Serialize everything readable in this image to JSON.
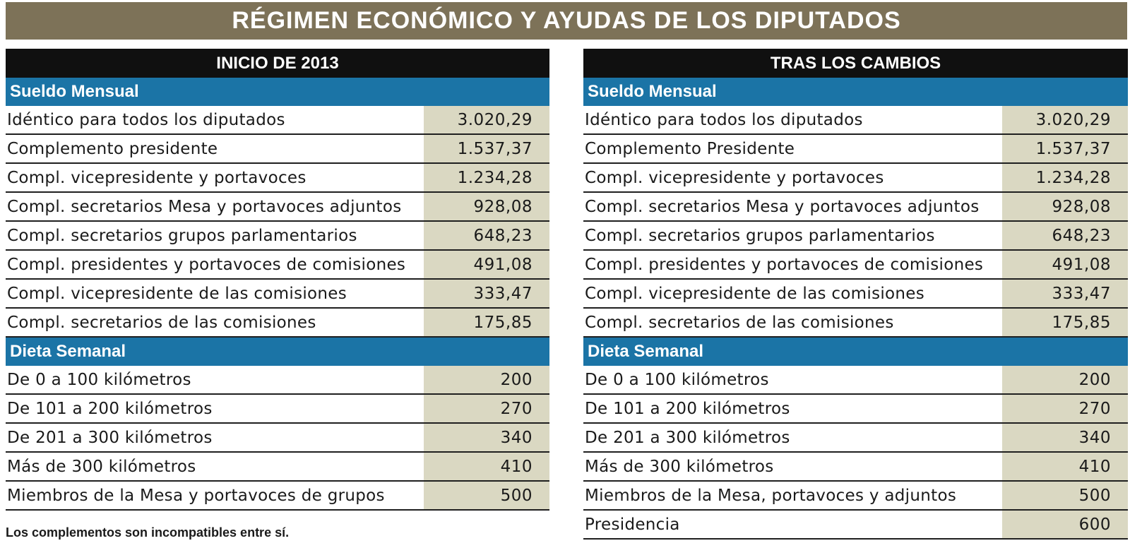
{
  "title": "RÉGIMEN ECONÓMICO Y AYUDAS DE LOS DIPUTADOS",
  "left": {
    "heading": "INICIO DE 2013",
    "sueldo": {
      "heading": "Sueldo Mensual",
      "rows": [
        {
          "label": "Idéntico para todos los diputados",
          "value": "3.020,29"
        },
        {
          "label": "Complemento presidente",
          "value": "1.537,37"
        },
        {
          "label": "Compl. vicepresidente y portavoces",
          "value": "1.234,28"
        },
        {
          "label": "Compl. secretarios Mesa y portavoces adjuntos",
          "value": "928,08"
        },
        {
          "label": "Compl. secretarios grupos parlamentarios",
          "value": "648,23"
        },
        {
          "label": "Compl. presidentes y portavoces de comisiones",
          "value": "491,08"
        },
        {
          "label": "Compl. vicepresidente de las comisiones",
          "value": "333,47"
        },
        {
          "label": "Compl. secretarios de las comisiones",
          "value": "175,85"
        }
      ]
    },
    "dieta": {
      "heading": "Dieta Semanal",
      "rows": [
        {
          "label": "De 0 a 100 kilómetros",
          "value": "200"
        },
        {
          "label": "De 101 a 200 kilómetros",
          "value": "270"
        },
        {
          "label": "De 201 a 300 kilómetros",
          "value": "340"
        },
        {
          "label": "Más de 300 kilómetros",
          "value": "410"
        },
        {
          "label": "Miembros de la Mesa y portavoces de grupos",
          "value": "500"
        }
      ]
    }
  },
  "right": {
    "heading": "TRAS LOS CAMBIOS",
    "sueldo": {
      "heading": "Sueldo Mensual",
      "rows": [
        {
          "label": "Idéntico para todos los diputados",
          "value": "3.020,29"
        },
        {
          "label": "Complemento Presidente",
          "value": "1.537,37"
        },
        {
          "label": "Compl. vicepresidente y portavoces",
          "value": "1.234,28"
        },
        {
          "label": "Compl. secretarios Mesa y portavoces adjuntos",
          "value": "928,08"
        },
        {
          "label": "Compl. secretarios grupos parlamentarios",
          "value": "648,23"
        },
        {
          "label": "Compl. presidentes y portavoces de comisiones",
          "value": "491,08"
        },
        {
          "label": "Compl. vicepresidente de las comisiones",
          "value": "333,47"
        },
        {
          "label": "Compl. secretarios de las comisiones",
          "value": "175,85"
        }
      ]
    },
    "dieta": {
      "heading": "Dieta Semanal",
      "rows": [
        {
          "label": "De 0 a 100 kilómetros",
          "value": "200"
        },
        {
          "label": "De 101 a 200 kilómetros",
          "value": "270"
        },
        {
          "label": "De 201 a 300 kilómetros",
          "value": "340"
        },
        {
          "label": "Más de 300 kilómetros",
          "value": "410"
        },
        {
          "label": "Miembros de la Mesa, portavoces y adjuntos",
          "value": "500"
        },
        {
          "label": "Presidencia",
          "value": "600"
        }
      ]
    }
  },
  "footnote": "Los complementos son incompatibles entre sí.",
  "colors": {
    "title_bg": "#7d7258",
    "panel_head_bg": "#101010",
    "section_head_bg": "#1b74a6",
    "value_bg": "#dad8c2"
  }
}
